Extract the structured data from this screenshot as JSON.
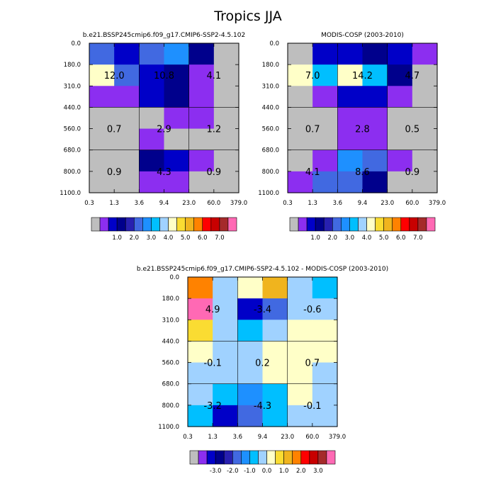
{
  "figure": {
    "title": "Tropics JJA"
  },
  "palette": [
    "#bebebe",
    "#8c2ef0",
    "#0000c8",
    "#00008c",
    "#2820b0",
    "#4169e1",
    "#1e90ff",
    "#00bfff",
    "#a0d2ff",
    "#ffffc8",
    "#fadc32",
    "#f0b41e",
    "#ff8200",
    "#ff0000",
    "#c80000",
    "#a52a2a",
    "#ff69b4"
  ],
  "chart_data": [
    {
      "type": "heatmap",
      "title": "b.e21.BSSP245cmip6.f09_g17.CMIP6-SSP2-4.5.102",
      "x_ticks": [
        "0.3",
        "1.3",
        "3.6",
        "9.4",
        "23.0",
        "60.0",
        "379.0"
      ],
      "y_ticks": [
        "0.0",
        "180.0",
        "310.0",
        "440.0",
        "560.0",
        "680.0",
        "800.0",
        "1100.0"
      ],
      "cells": [
        [
          5,
          2,
          5,
          6,
          3,
          0
        ],
        [
          9,
          5,
          2,
          3,
          1,
          0
        ],
        [
          1,
          1,
          2,
          3,
          1,
          0
        ],
        [
          0,
          0,
          0,
          1,
          1,
          0
        ],
        [
          0,
          0,
          1,
          0,
          0,
          0
        ],
        [
          0,
          0,
          3,
          2,
          1,
          0
        ],
        [
          0,
          0,
          1,
          1,
          0,
          0
        ]
      ],
      "labels": [
        {
          "text": "12.0",
          "col": 0.5,
          "row": 1.5
        },
        {
          "text": "10.8",
          "col": 2.5,
          "row": 1.5
        },
        {
          "text": "4.1",
          "col": 4.5,
          "row": 1.5
        },
        {
          "text": "0.7",
          "col": 0.5,
          "row": 4.0
        },
        {
          "text": "2.9",
          "col": 2.5,
          "row": 4.0
        },
        {
          "text": "1.2",
          "col": 4.5,
          "row": 4.0
        },
        {
          "text": "0.9",
          "col": 0.5,
          "row": 6.0
        },
        {
          "text": "4.3",
          "col": 2.5,
          "row": 6.0
        },
        {
          "text": "0.9",
          "col": 4.5,
          "row": 6.0
        }
      ],
      "colorbar_ticks": [
        "1.0",
        "2.0",
        "3.0",
        "4.0",
        "5.0",
        "6.0",
        "7.0"
      ]
    },
    {
      "type": "heatmap",
      "title": "MODIS-COSP (2003-2010)",
      "x_ticks": [
        "0.3",
        "1.3",
        "3.6",
        "9.4",
        "23.0",
        "60.0",
        "379.0"
      ],
      "y_ticks": [
        "0.0",
        "180.0",
        "310.0",
        "440.0",
        "560.0",
        "680.0",
        "800.0",
        "1100.0"
      ],
      "cells": [
        [
          0,
          2,
          2,
          3,
          2,
          1
        ],
        [
          9,
          7,
          9,
          7,
          3,
          0
        ],
        [
          0,
          1,
          2,
          2,
          1,
          0
        ],
        [
          0,
          0,
          1,
          1,
          0,
          0
        ],
        [
          0,
          0,
          1,
          1,
          0,
          0
        ],
        [
          0,
          1,
          6,
          5,
          1,
          0
        ],
        [
          1,
          5,
          5,
          3,
          0,
          0
        ]
      ],
      "labels": [
        {
          "text": "7.0",
          "col": 0.5,
          "row": 1.5
        },
        {
          "text": "14.2",
          "col": 2.5,
          "row": 1.5
        },
        {
          "text": "4.7",
          "col": 4.5,
          "row": 1.5
        },
        {
          "text": "0.7",
          "col": 0.5,
          "row": 4.0
        },
        {
          "text": "2.8",
          "col": 2.5,
          "row": 4.0
        },
        {
          "text": "0.5",
          "col": 4.5,
          "row": 4.0
        },
        {
          "text": "4.1",
          "col": 0.5,
          "row": 6.0
        },
        {
          "text": "8.6",
          "col": 2.5,
          "row": 6.0
        },
        {
          "text": "0.9",
          "col": 4.5,
          "row": 6.0
        }
      ],
      "colorbar_ticks": [
        "1.0",
        "2.0",
        "3.0",
        "4.0",
        "5.0",
        "6.0",
        "7.0"
      ]
    },
    {
      "type": "heatmap",
      "title": "b.e21.BSSP245cmip6.f09_g17.CMIP6-SSP2-4.5.102 - MODIS-COSP (2003-2010)",
      "x_ticks": [
        "0.3",
        "1.3",
        "3.6",
        "9.4",
        "23.0",
        "60.0",
        "379.0"
      ],
      "y_ticks": [
        "0.0",
        "180.0",
        "310.0",
        "440.0",
        "560.0",
        "680.0",
        "800.0",
        "1100.0"
      ],
      "cells": [
        [
          12,
          8,
          9,
          11,
          8,
          7
        ],
        [
          16,
          8,
          2,
          5,
          8,
          8
        ],
        [
          10,
          8,
          7,
          8,
          9,
          9
        ],
        [
          9,
          8,
          8,
          9,
          9,
          9
        ],
        [
          8,
          8,
          8,
          9,
          9,
          8
        ],
        [
          8,
          7,
          6,
          7,
          9,
          8
        ],
        [
          7,
          2,
          5,
          7,
          8,
          8
        ]
      ],
      "labels": [
        {
          "text": "4.9",
          "col": 0.5,
          "row": 1.5
        },
        {
          "text": "-3.4",
          "col": 2.5,
          "row": 1.5
        },
        {
          "text": "-0.6",
          "col": 4.5,
          "row": 1.5
        },
        {
          "text": "-0.1",
          "col": 0.5,
          "row": 4.0
        },
        {
          "text": "0.2",
          "col": 2.5,
          "row": 4.0
        },
        {
          "text": "0.7",
          "col": 4.5,
          "row": 4.0
        },
        {
          "text": "-3.2",
          "col": 0.5,
          "row": 6.0
        },
        {
          "text": "-4.3",
          "col": 2.5,
          "row": 6.0
        },
        {
          "text": "-0.1",
          "col": 4.5,
          "row": 6.0
        }
      ],
      "colorbar_ticks": [
        "-3.0",
        "-2.0",
        "-1.0",
        "0.0",
        "1.0",
        "2.0",
        "3.0"
      ]
    }
  ]
}
